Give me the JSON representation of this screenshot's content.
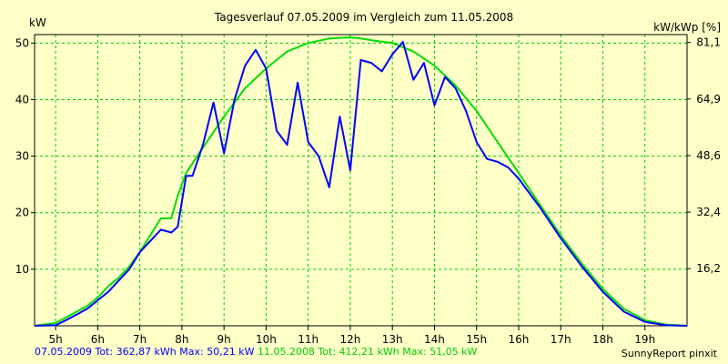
{
  "chart_data": {
    "type": "line",
    "title": "Tagesverlauf 07.05.2009 im Vergleich zum 11.05.2008",
    "ylabel": "kW",
    "y2label": "kW/kWp [%]",
    "ylim": [
      0,
      51.5
    ],
    "xlim": [
      4.5,
      20.0
    ],
    "x_ticks": [
      5,
      6,
      7,
      8,
      9,
      10,
      11,
      12,
      13,
      14,
      15,
      16,
      17,
      18,
      19
    ],
    "x_tick_labels": [
      "5h",
      "6h",
      "7h",
      "8h",
      "9h",
      "10h",
      "11h",
      "12h",
      "13h",
      "14h",
      "15h",
      "16h",
      "17h",
      "18h",
      "19h"
    ],
    "y_ticks": [
      10,
      20,
      30,
      40,
      50
    ],
    "y_tick_labels": [
      "10",
      "20",
      "30",
      "40",
      "50"
    ],
    "y2_ticks": [
      10.1,
      20.1,
      30.1,
      40.1,
      50.1
    ],
    "y2_tick_labels": [
      "16,2",
      "32,4",
      "48,6",
      "64,9",
      "81,1"
    ],
    "grid": true,
    "colors": {
      "series1": "#0000ff",
      "series2": "#00dd00",
      "grid": "#00cc00",
      "background": "#ffffc8"
    },
    "series": [
      {
        "name": "07.05.2009",
        "x": [
          4.5,
          5.0,
          5.25,
          5.5,
          5.75,
          6.0,
          6.25,
          6.5,
          6.75,
          7.0,
          7.25,
          7.5,
          7.75,
          7.9,
          8.1,
          8.25,
          8.5,
          8.75,
          9.0,
          9.25,
          9.5,
          9.75,
          10.0,
          10.25,
          10.5,
          10.75,
          11.0,
          11.25,
          11.5,
          11.75,
          12.0,
          12.25,
          12.5,
          12.75,
          13.0,
          13.25,
          13.5,
          13.75,
          14.0,
          14.25,
          14.5,
          14.75,
          15.0,
          15.25,
          15.5,
          15.75,
          16.0,
          16.5,
          17.0,
          17.5,
          18.0,
          18.5,
          19.0,
          19.5,
          20.0
        ],
        "y": [
          0.0,
          0.1,
          1.0,
          2.0,
          3.0,
          4.5,
          6.0,
          8.0,
          10.0,
          13.0,
          15.0,
          17.0,
          16.5,
          17.5,
          26.5,
          26.5,
          32.0,
          39.5,
          30.5,
          40.0,
          46.0,
          48.8,
          45.5,
          34.5,
          32.0,
          43.0,
          32.5,
          30.0,
          24.5,
          37.0,
          27.5,
          47.0,
          46.5,
          45.0,
          48.0,
          50.2,
          43.5,
          46.5,
          39.0,
          44.0,
          42.0,
          38.0,
          32.5,
          29.5,
          29.0,
          28.0,
          26.0,
          21.0,
          15.5,
          10.5,
          6.0,
          2.5,
          0.7,
          0.1,
          0.0
        ]
      },
      {
        "name": "11.05.2008",
        "x": [
          4.5,
          5.0,
          5.25,
          5.5,
          5.75,
          6.0,
          6.25,
          6.5,
          6.75,
          7.0,
          7.25,
          7.5,
          7.75,
          7.9,
          8.1,
          8.5,
          9.0,
          9.5,
          10.0,
          10.5,
          11.0,
          11.5,
          12.0,
          12.25,
          12.5,
          13.0,
          13.5,
          14.0,
          14.5,
          15.0,
          15.5,
          16.0,
          16.5,
          17.0,
          17.5,
          18.0,
          18.5,
          19.0,
          19.5,
          20.0
        ],
        "y": [
          0.0,
          0.5,
          1.5,
          2.5,
          3.5,
          5.0,
          7.0,
          8.5,
          10.5,
          13.0,
          16.0,
          19.0,
          19.0,
          23.0,
          27.0,
          31.5,
          37.0,
          42.0,
          45.5,
          48.5,
          50.0,
          50.8,
          51.0,
          50.8,
          50.5,
          50.0,
          48.5,
          46.0,
          42.5,
          38.0,
          32.5,
          27.0,
          21.5,
          16.0,
          11.0,
          6.5,
          3.0,
          1.0,
          0.2,
          0.0
        ]
      }
    ]
  },
  "footer": {
    "series1_text": "07.05.2009 Tot: 362,87 kWh Max: 50,21 kW",
    "series2_text": "11.05.2008 Tot: 412,21 kWh Max: 51,05 kW",
    "credit": "SunnyReport pinxit"
  }
}
